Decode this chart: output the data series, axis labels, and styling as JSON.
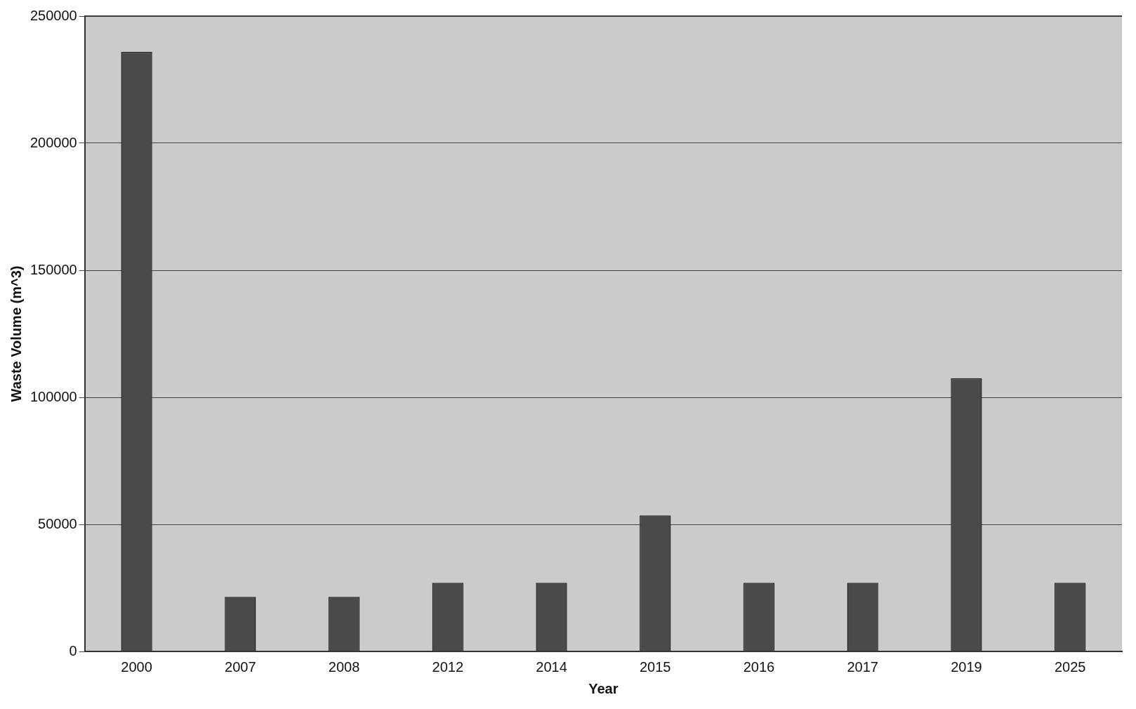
{
  "chart_data": {
    "type": "bar",
    "xlabel": "Year",
    "ylabel": "Waste Volume (m^3)",
    "categories": [
      "2000",
      "2007",
      "2008",
      "2012",
      "2014",
      "2015",
      "2016",
      "2017",
      "2019",
      "2025"
    ],
    "values": [
      236000,
      21500,
      21500,
      27000,
      27000,
      53500,
      27000,
      27000,
      107500,
      27000
    ],
    "color": "#4a4a4a",
    "ylim": [
      0,
      250000
    ],
    "yticks": [
      0,
      50000,
      100000,
      150000,
      200000,
      250000
    ],
    "grid": "y",
    "legend": false
  }
}
